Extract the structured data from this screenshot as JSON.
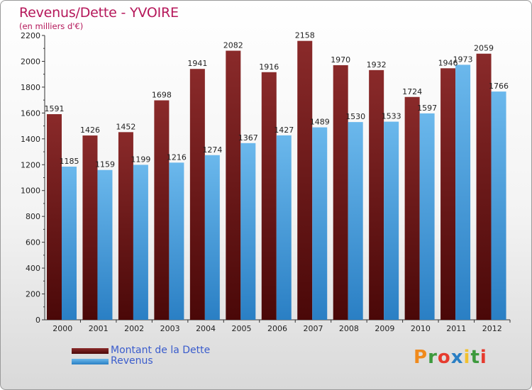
{
  "header": {
    "title": "Revenus/Dette - YVOIRE",
    "subtitle": "(en milliers d'€)"
  },
  "logo": {
    "text": "Proxiti"
  },
  "colors": {
    "dette_top": "#8a2a2a",
    "dette_bottom": "#4a0808",
    "revenus_top": "#6bb8ec",
    "revenus_bottom": "#2a7fc4",
    "title": "#b5175a",
    "legend_text": "#3a5ccc"
  },
  "chart_data": {
    "type": "bar",
    "title": "Revenus/Dette - YVOIRE",
    "ylabel": "(en milliers d'€)",
    "xlabel": "",
    "categories": [
      "2000",
      "2001",
      "2002",
      "2003",
      "2004",
      "2005",
      "2006",
      "2007",
      "2008",
      "2009",
      "2010",
      "2011",
      "2012"
    ],
    "series": [
      {
        "name": "Montant de la Dette",
        "values": [
          1591,
          1426,
          1452,
          1698,
          1941,
          2082,
          1916,
          2158,
          1970,
          1932,
          1724,
          1946,
          2059
        ]
      },
      {
        "name": "Revenus",
        "values": [
          1185,
          1159,
          1199,
          1216,
          1274,
          1367,
          1427,
          1489,
          1530,
          1533,
          1597,
          1973,
          1766
        ]
      }
    ],
    "ylim": [
      0,
      2200
    ],
    "yticks": [
      0,
      200,
      400,
      600,
      800,
      1000,
      1200,
      1400,
      1600,
      1800,
      2000,
      2200
    ],
    "grid": false,
    "legend": "bottom-left"
  }
}
